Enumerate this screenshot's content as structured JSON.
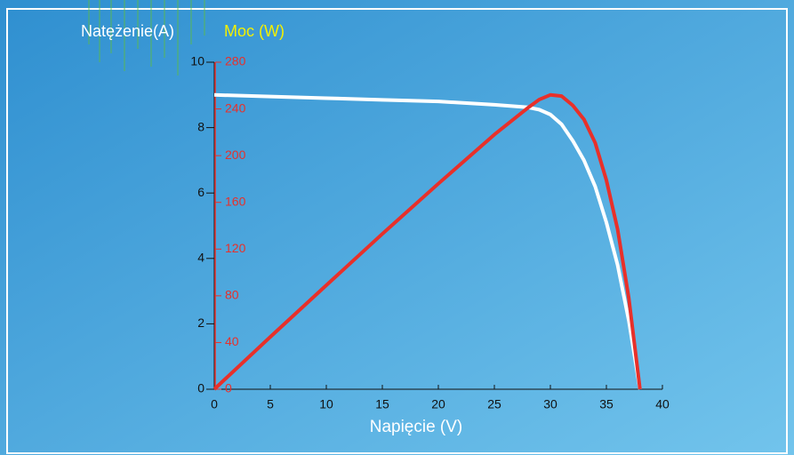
{
  "chart_data": {
    "type": "line",
    "x": [
      0,
      5,
      10,
      15,
      20,
      25,
      28,
      29,
      30,
      31,
      32,
      33,
      34,
      35,
      36,
      37,
      38
    ],
    "series": [
      {
        "name": "Natężenie(A)",
        "color": "#ffffff",
        "values": [
          9.0,
          8.95,
          8.9,
          8.85,
          8.8,
          8.7,
          8.62,
          8.55,
          8.4,
          8.1,
          7.6,
          7.0,
          6.2,
          5.1,
          3.8,
          2.1,
          0
        ]
      },
      {
        "name": "Moc (W)",
        "color": "#e8302a",
        "axis": "y2",
        "values": [
          0,
          44.8,
          89,
          133,
          176,
          218,
          241,
          248,
          252,
          251,
          243,
          231,
          211,
          179,
          137,
          78,
          0
        ]
      }
    ],
    "xlabel": "Napięcie (V)",
    "xlim": [
      0,
      40
    ],
    "xticks": [
      0,
      5,
      10,
      15,
      20,
      25,
      30,
      35,
      40
    ],
    "ylim": [
      0,
      10
    ],
    "yticks": [
      0,
      2,
      4,
      6,
      8,
      10
    ],
    "y2lim": [
      0,
      280
    ],
    "y2ticks": [
      0,
      40,
      80,
      120,
      160,
      200,
      240,
      280
    ]
  }
}
